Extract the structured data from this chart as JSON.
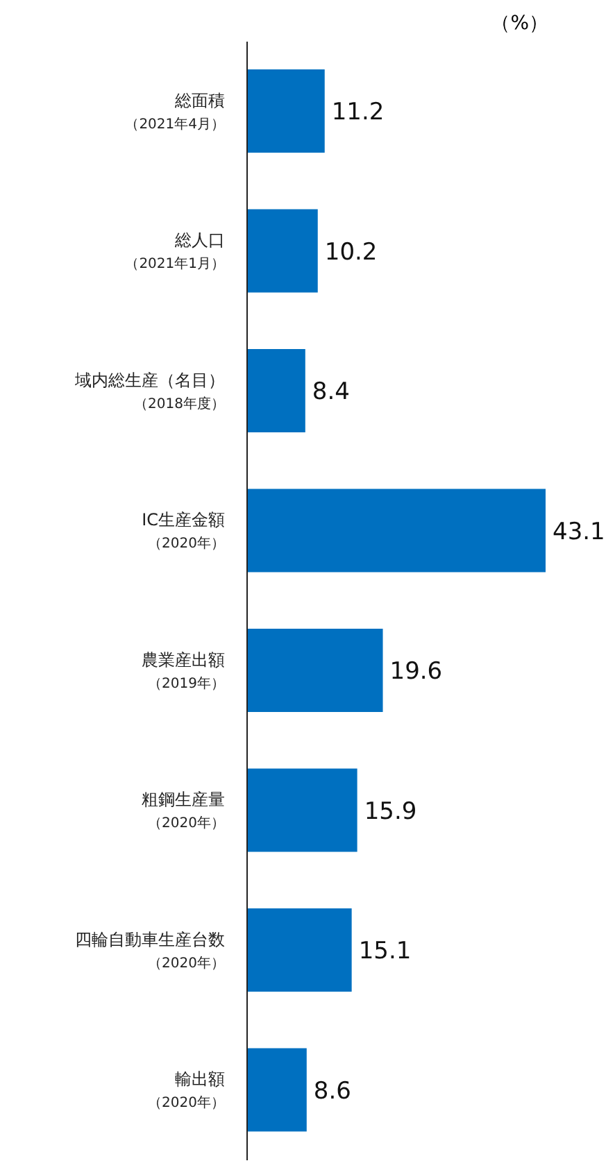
{
  "chart_data": {
    "type": "bar",
    "orientation": "horizontal",
    "xlabel": "（%）",
    "categories": [
      "総面積（2021年4月）",
      "総人口（2021年1月）",
      "域内総生産（名目）（2018年度）",
      "IC生産金額（2020年）",
      "農業産出額（2019年）",
      "粗鋼生産量（2020年）",
      "四輪自動車生産台数（2020年）",
      "輸出額（2020年）"
    ],
    "values": [
      11.2,
      10.2,
      8.4,
      43.1,
      19.6,
      15.9,
      15.1,
      8.6
    ],
    "color": "#0070c0",
    "data_labels": true,
    "tick_labels": "y"
  }
}
